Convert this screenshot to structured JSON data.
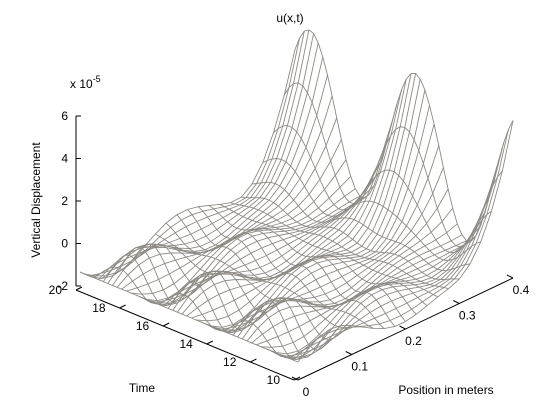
{
  "chart_data": {
    "type": "line",
    "title": "u(x,t)",
    "xlabel": "Position in meters",
    "ylabel": "Time",
    "zlabel": "Vertical Displacement",
    "z_multiplier": "x 10",
    "z_multiplier_exp": "-5",
    "x_range": [
      0,
      0.4
    ],
    "y_range": [
      10,
      20
    ],
    "z_range": [
      -2,
      6
    ],
    "x_ticks": [
      "0",
      "0.1",
      "0.2",
      "0.3",
      "0.4"
    ],
    "y_ticks": [
      "10",
      "12",
      "14",
      "16",
      "18",
      "20"
    ],
    "z_ticks": [
      "-2",
      "0",
      "2",
      "4",
      "6"
    ],
    "surface": {
      "position_m": [
        0.0,
        0.02,
        0.04,
        0.06,
        0.08,
        0.1,
        0.12,
        0.14,
        0.16,
        0.18,
        0.2,
        0.22,
        0.24,
        0.26,
        0.28,
        0.3,
        0.32,
        0.34,
        0.36,
        0.38,
        0.4
      ],
      "time_samples": 48,
      "time_start": 10,
      "time_end": 20,
      "amplitude_scale": 1.2,
      "tip_displacement_max": 7.0
    },
    "line_color": "#8e8a84",
    "grid": false,
    "legend": "none"
  }
}
